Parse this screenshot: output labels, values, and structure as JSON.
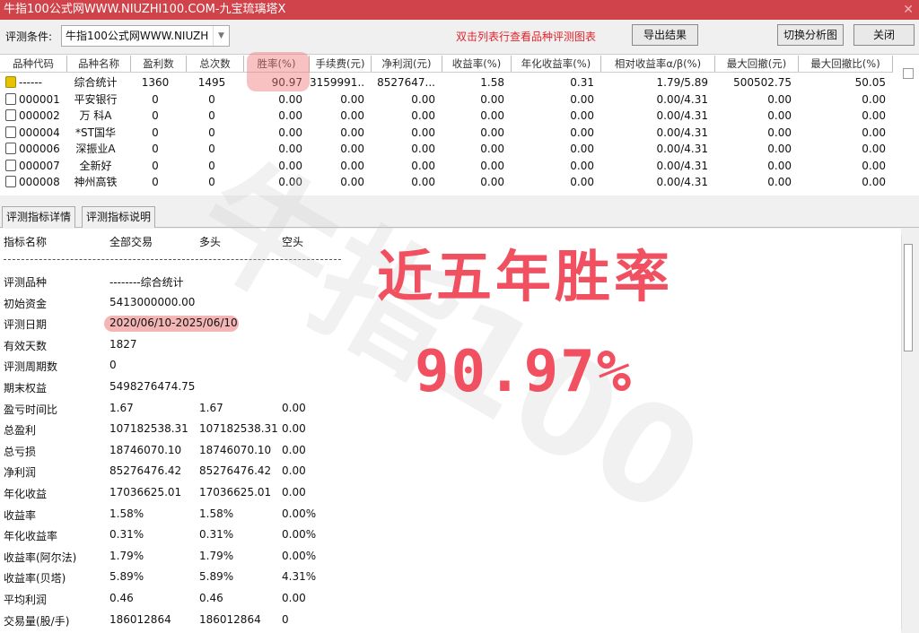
{
  "window": {
    "title": "牛指100公式网WWW.NIUZHI100.COM-九宝琉璃塔X",
    "close": "✕"
  },
  "toolbar": {
    "cond_label": "评测条件:",
    "cond_value": "牛指100公式网WWW.NIUZH",
    "hint": "双击列表行查看品种评测图表",
    "export": "导出结果",
    "switch": "切换分析图",
    "close": "关闭"
  },
  "grid": {
    "headers": [
      "品种代码",
      "品种名称",
      "盈利数",
      "总次数",
      "胜率(%)",
      "手续费(元)",
      "净利润(元)",
      "收益率(%)",
      "年化收益率(%)",
      "相对收益率α/β(%)",
      "最大回撤(元)",
      "最大回撤比(%)"
    ],
    "rows": [
      [
        "------",
        "综合统计",
        "1360",
        "1495",
        "90.97",
        "3159991....",
        "8527647...",
        "1.58",
        "0.31",
        "1.79/5.89",
        "500502.75",
        "50.05"
      ],
      [
        "000001",
        "平安银行",
        "0",
        "0",
        "0.00",
        "0.00",
        "0.00",
        "0.00",
        "0.00",
        "0.00/4.31",
        "0.00",
        "0.00"
      ],
      [
        "000002",
        "万 科A",
        "0",
        "0",
        "0.00",
        "0.00",
        "0.00",
        "0.00",
        "0.00",
        "0.00/4.31",
        "0.00",
        "0.00"
      ],
      [
        "000004",
        "*ST国华",
        "0",
        "0",
        "0.00",
        "0.00",
        "0.00",
        "0.00",
        "0.00",
        "0.00/4.31",
        "0.00",
        "0.00"
      ],
      [
        "000006",
        "深振业A",
        "0",
        "0",
        "0.00",
        "0.00",
        "0.00",
        "0.00",
        "0.00",
        "0.00/4.31",
        "0.00",
        "0.00"
      ],
      [
        "000007",
        "全新好",
        "0",
        "0",
        "0.00",
        "0.00",
        "0.00",
        "0.00",
        "0.00",
        "0.00/4.31",
        "0.00",
        "0.00"
      ],
      [
        "000008",
        "神州高铁",
        "0",
        "0",
        "0.00",
        "0.00",
        "0.00",
        "0.00",
        "0.00",
        "0.00/4.31",
        "0.00",
        "0.00"
      ]
    ]
  },
  "tabs": [
    "评测指标详情",
    "评测指标说明"
  ],
  "detail": {
    "headers": [
      "指标名称",
      "全部交易",
      "多头",
      "空头"
    ],
    "rows": [
      [
        "评测品种",
        "--------综合统计",
        "",
        ""
      ],
      [
        "初始资金",
        "5413000000.00",
        "",
        ""
      ],
      [
        "评测日期",
        "2020/06/10-2025/06/10",
        "",
        ""
      ],
      [
        "有效天数",
        "1827",
        "",
        ""
      ],
      [
        "评测周期数",
        "0",
        "",
        ""
      ],
      [
        "期末权益",
        "5498276474.75",
        "",
        ""
      ],
      [
        "盈亏时间比",
        "1.67",
        "1.67",
        "0.00"
      ],
      [
        "总盈利",
        "107182538.31",
        "107182538.31",
        "0.00"
      ],
      [
        "总亏损",
        "18746070.10",
        "18746070.10",
        "0.00"
      ],
      [
        "净利润",
        "85276476.42",
        "85276476.42",
        "0.00"
      ],
      [
        "年化收益",
        "17036625.01",
        "17036625.01",
        "0.00"
      ],
      [
        "收益率",
        "1.58%",
        "1.58%",
        "0.00%"
      ],
      [
        "年化收益率",
        "0.31%",
        "0.31%",
        "0.00%"
      ],
      [
        "收益率(阿尔法)",
        "1.79%",
        "1.79%",
        "0.00%"
      ],
      [
        "收益率(贝塔)",
        "5.89%",
        "5.89%",
        "4.31%"
      ],
      [
        "平均利润",
        "0.46",
        "0.46",
        "0.00"
      ],
      [
        "交易量(股/手)",
        "186012864",
        "186012864",
        "0"
      ]
    ]
  },
  "overlay": {
    "headline": "近五年胜率",
    "value": "90.97%"
  },
  "watermark": "牛指100 WWW.NIUZHI100.COM",
  "colors": {
    "titlebar": "#d0434a",
    "hint": "#e0242c",
    "overlay": "#f05060"
  }
}
